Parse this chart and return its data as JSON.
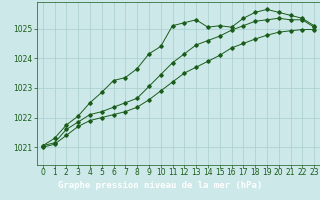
{
  "title": "Graphe pression niveau de la mer (hPa)",
  "bg_color": "#cce8e8",
  "plot_bg_color": "#cce8e8",
  "line_color": "#1a5c1a",
  "grid_color": "#aacece",
  "footer_bg": "#2d6b2d",
  "footer_text_color": "#ffffff",
  "xlim": [
    -0.5,
    23.5
  ],
  "ylim": [
    1020.4,
    1025.9
  ],
  "yticks": [
    1021,
    1022,
    1023,
    1024,
    1025
  ],
  "xticks": [
    0,
    1,
    2,
    3,
    4,
    5,
    6,
    7,
    8,
    9,
    10,
    11,
    12,
    13,
    14,
    15,
    16,
    17,
    18,
    19,
    20,
    21,
    22,
    23
  ],
  "series1": {
    "x": [
      0,
      1,
      2,
      3,
      4,
      5,
      6,
      7,
      8,
      9,
      10,
      11,
      12,
      13,
      14,
      15,
      16,
      17,
      18,
      19,
      20,
      21,
      22,
      23
    ],
    "y": [
      1021.05,
      1021.3,
      1021.75,
      1022.05,
      1022.5,
      1022.85,
      1023.25,
      1023.35,
      1023.65,
      1024.15,
      1024.4,
      1025.1,
      1025.2,
      1025.3,
      1025.05,
      1025.1,
      1025.05,
      1025.35,
      1025.55,
      1025.65,
      1025.55,
      1025.45,
      1025.35,
      1025.1
    ]
  },
  "series2": {
    "x": [
      0,
      1,
      2,
      3,
      4,
      5,
      6,
      7,
      8,
      9,
      10,
      11,
      12,
      13,
      14,
      15,
      16,
      17,
      18,
      19,
      20,
      21,
      22,
      23
    ],
    "y": [
      1021.05,
      1021.15,
      1021.6,
      1021.85,
      1022.1,
      1022.2,
      1022.35,
      1022.5,
      1022.65,
      1023.05,
      1023.45,
      1023.85,
      1024.15,
      1024.45,
      1024.6,
      1024.75,
      1024.95,
      1025.1,
      1025.25,
      1025.3,
      1025.35,
      1025.3,
      1025.3,
      1025.05
    ]
  },
  "series3": {
    "x": [
      0,
      1,
      2,
      3,
      4,
      5,
      6,
      7,
      8,
      9,
      10,
      11,
      12,
      13,
      14,
      15,
      16,
      17,
      18,
      19,
      20,
      21,
      22,
      23
    ],
    "y": [
      1021.0,
      1021.1,
      1021.4,
      1021.7,
      1021.9,
      1022.0,
      1022.1,
      1022.2,
      1022.35,
      1022.6,
      1022.9,
      1023.2,
      1023.5,
      1023.7,
      1023.9,
      1024.1,
      1024.35,
      1024.5,
      1024.65,
      1024.78,
      1024.88,
      1024.93,
      1024.97,
      1024.97
    ]
  },
  "title_fontsize": 6.5,
  "tick_fontsize": 5.5
}
